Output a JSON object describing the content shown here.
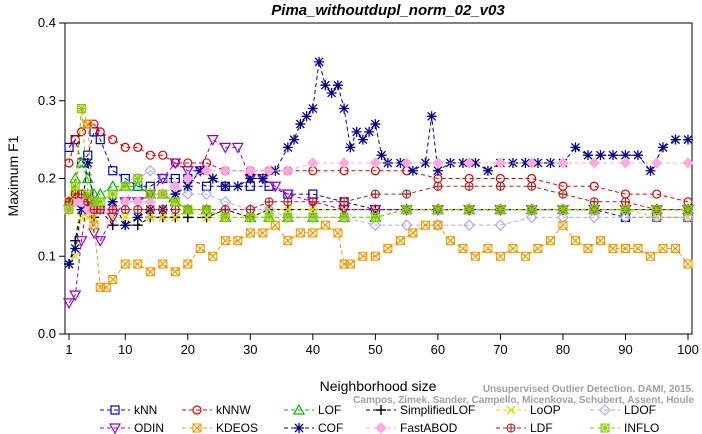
{
  "chart_data": {
    "type": "line",
    "title": "Pima_withoutdupl_norm_02_v03",
    "xlabel": "Neighborhood size",
    "ylabel": "Maximum F1",
    "xlim": [
      1,
      100
    ],
    "ylim": [
      0.0,
      0.4
    ],
    "xticks": [
      1,
      10,
      20,
      30,
      40,
      50,
      60,
      70,
      80,
      90,
      100
    ],
    "yticks": [
      "0.0",
      "0.1",
      "0.2",
      "0.3",
      "0.4"
    ],
    "grid": false,
    "legend_position": "bottom",
    "watermark": "Campos, Zimek, Sander, Campello, Micenkova, Schubert, Assent, Houle",
    "watermark_line1": "Unsupervised Outlier Detection. DAMI, 2015.",
    "series": [
      {
        "name": "kNN",
        "color": "#0000cc",
        "marker": "square",
        "x": [
          1,
          2,
          3,
          4,
          5,
          6,
          8,
          10,
          12,
          14,
          16,
          18,
          20,
          23,
          26,
          30,
          33,
          36,
          40,
          45,
          50,
          55,
          60,
          65,
          70,
          75,
          80,
          85,
          90,
          95,
          100
        ],
        "y": [
          0.24,
          0.25,
          0.22,
          0.23,
          0.26,
          0.25,
          0.21,
          0.2,
          0.19,
          0.19,
          0.2,
          0.2,
          0.2,
          0.19,
          0.19,
          0.19,
          0.19,
          0.18,
          0.18,
          0.17,
          0.16,
          0.16,
          0.16,
          0.16,
          0.16,
          0.16,
          0.16,
          0.16,
          0.15,
          0.15,
          0.15
        ]
      },
      {
        "name": "kNNW",
        "color": "#dd0000",
        "marker": "circle",
        "x": [
          1,
          2,
          3,
          4,
          5,
          6,
          8,
          10,
          12,
          14,
          16,
          18,
          20,
          23,
          26,
          30,
          33,
          36,
          40,
          45,
          50,
          55,
          60,
          65,
          70,
          75,
          80,
          85,
          90,
          95,
          100
        ],
        "y": [
          0.22,
          0.25,
          0.26,
          0.27,
          0.27,
          0.26,
          0.25,
          0.24,
          0.24,
          0.23,
          0.23,
          0.22,
          0.22,
          0.22,
          0.21,
          0.21,
          0.21,
          0.21,
          0.21,
          0.21,
          0.21,
          0.21,
          0.2,
          0.2,
          0.2,
          0.2,
          0.19,
          0.19,
          0.18,
          0.18,
          0.17
        ]
      },
      {
        "name": "LOF",
        "color": "#00bb00",
        "marker": "triangle-up",
        "x": [
          1,
          2,
          3,
          4,
          5,
          6,
          8,
          10,
          12,
          14,
          16,
          18,
          20,
          23,
          26,
          30,
          33,
          36,
          40,
          45,
          50,
          55,
          60,
          65,
          70,
          75,
          80,
          85,
          90,
          95,
          100
        ],
        "y": [
          0.17,
          0.2,
          0.22,
          0.2,
          0.18,
          0.18,
          0.19,
          0.19,
          0.19,
          0.18,
          0.18,
          0.17,
          0.16,
          0.16,
          0.15,
          0.15,
          0.15,
          0.15,
          0.15,
          0.15,
          0.15,
          0.16,
          0.16,
          0.16,
          0.16,
          0.16,
          0.16,
          0.16,
          0.16,
          0.16,
          0.16
        ]
      },
      {
        "name": "SimplifiedLOF",
        "color": "#000000",
        "marker": "plus",
        "x": [
          1,
          2,
          3,
          4,
          5,
          6,
          8,
          10,
          12,
          14,
          16,
          18,
          20,
          23,
          26,
          30,
          33,
          36,
          40,
          45,
          50,
          55,
          60,
          65,
          70,
          75,
          80,
          85,
          90,
          95,
          100
        ],
        "y": [
          0.09,
          0.12,
          0.17,
          0.17,
          0.15,
          0.16,
          0.14,
          0.14,
          0.14,
          0.15,
          0.15,
          0.15,
          0.15,
          0.15,
          0.16,
          0.15,
          0.16,
          0.16,
          0.16,
          0.16,
          0.16,
          0.16,
          0.16,
          0.16,
          0.16,
          0.16,
          0.16,
          0.16,
          0.16,
          0.16,
          0.16
        ]
      },
      {
        "name": "LoOP",
        "color": "#dddd00",
        "marker": "x",
        "x": [
          1,
          2,
          3,
          4,
          5,
          6,
          8,
          10,
          12,
          14,
          16,
          18,
          20,
          23,
          26,
          30,
          33,
          36,
          40,
          45,
          50,
          55,
          60,
          65,
          70,
          75,
          80,
          85,
          90,
          95,
          100
        ],
        "y": [
          0.09,
          0.1,
          0.15,
          0.15,
          0.15,
          0.16,
          0.15,
          0.15,
          0.15,
          0.15,
          0.15,
          0.15,
          0.16,
          0.15,
          0.15,
          0.15,
          0.16,
          0.16,
          0.16,
          0.16,
          0.16,
          0.16,
          0.16,
          0.16,
          0.16,
          0.16,
          0.16,
          0.16,
          0.16,
          0.15,
          0.15
        ]
      },
      {
        "name": "LDOF",
        "color": "#aaaaee",
        "marker": "diamond",
        "x": [
          1,
          2,
          3,
          4,
          5,
          6,
          8,
          10,
          12,
          14,
          16,
          18,
          20,
          23,
          26,
          30,
          33,
          36,
          40,
          45,
          50,
          55,
          60,
          65,
          70,
          75,
          80,
          85,
          90,
          95,
          100
        ],
        "y": [
          0.16,
          0.17,
          0.17,
          0.17,
          0.17,
          0.16,
          0.16,
          0.17,
          0.2,
          0.21,
          0.2,
          0.19,
          0.18,
          0.18,
          0.17,
          0.16,
          0.16,
          0.15,
          0.15,
          0.15,
          0.14,
          0.14,
          0.14,
          0.14,
          0.14,
          0.15,
          0.15,
          0.15,
          0.15,
          0.15,
          0.15
        ]
      },
      {
        "name": "ODIN",
        "color": "#9900cc",
        "marker": "triangle-down",
        "x": [
          1,
          2,
          3,
          4,
          5,
          6,
          8,
          10,
          12,
          14,
          16,
          18,
          20,
          22,
          24,
          26,
          28,
          30,
          32,
          34,
          36,
          40,
          45,
          50,
          55,
          60,
          65,
          70,
          75,
          80,
          85,
          90,
          95,
          100
        ],
        "y": [
          0.04,
          0.05,
          0.12,
          0.18,
          0.13,
          0.12,
          0.15,
          0.17,
          0.17,
          0.18,
          0.2,
          0.22,
          0.21,
          0.21,
          0.25,
          0.24,
          0.24,
          0.2,
          0.2,
          0.19,
          0.18,
          0.17,
          0.16,
          0.16,
          0.16,
          0.16,
          0.16,
          0.16,
          0.16,
          0.16,
          0.16,
          0.16,
          0.16,
          0.16
        ]
      },
      {
        "name": "KDEOS",
        "color": "#ee9900",
        "marker": "square-x",
        "x": [
          1,
          2,
          3,
          4,
          5,
          6,
          7,
          8,
          10,
          12,
          14,
          16,
          18,
          20,
          22,
          24,
          26,
          28,
          30,
          32,
          34,
          36,
          38,
          40,
          42,
          44,
          45,
          46,
          48,
          50,
          52,
          54,
          56,
          58,
          60,
          62,
          64,
          66,
          68,
          70,
          72,
          74,
          76,
          78,
          80,
          82,
          84,
          86,
          88,
          90,
          92,
          94,
          96,
          98,
          100
        ],
        "y": [
          0.17,
          0.18,
          0.29,
          0.27,
          0.14,
          0.06,
          0.06,
          0.07,
          0.09,
          0.09,
          0.08,
          0.09,
          0.08,
          0.09,
          0.11,
          0.1,
          0.12,
          0.12,
          0.13,
          0.13,
          0.14,
          0.12,
          0.13,
          0.13,
          0.14,
          0.13,
          0.09,
          0.09,
          0.1,
          0.1,
          0.11,
          0.12,
          0.13,
          0.14,
          0.14,
          0.12,
          0.11,
          0.1,
          0.11,
          0.1,
          0.11,
          0.1,
          0.11,
          0.12,
          0.14,
          0.12,
          0.11,
          0.12,
          0.11,
          0.11,
          0.11,
          0.1,
          0.11,
          0.11,
          0.09
        ]
      },
      {
        "name": "COF",
        "color": "#000088",
        "marker": "asterisk",
        "x": [
          1,
          2,
          3,
          4,
          5,
          6,
          8,
          10,
          12,
          14,
          16,
          18,
          20,
          22,
          24,
          26,
          28,
          30,
          32,
          34,
          36,
          37,
          38,
          39,
          40,
          41,
          42,
          43,
          44,
          45,
          46,
          47,
          48,
          49,
          50,
          51,
          52,
          54,
          56,
          58,
          59,
          60,
          62,
          64,
          66,
          68,
          70,
          72,
          74,
          76,
          78,
          80,
          82,
          84,
          86,
          88,
          90,
          92,
          94,
          96,
          98,
          100
        ],
        "y": [
          0.09,
          0.11,
          0.16,
          0.22,
          0.17,
          0.16,
          0.17,
          0.14,
          0.15,
          0.16,
          0.16,
          0.18,
          0.19,
          0.21,
          0.2,
          0.19,
          0.19,
          0.2,
          0.2,
          0.21,
          0.24,
          0.25,
          0.27,
          0.28,
          0.29,
          0.35,
          0.32,
          0.31,
          0.32,
          0.29,
          0.24,
          0.26,
          0.25,
          0.26,
          0.27,
          0.23,
          0.22,
          0.22,
          0.21,
          0.22,
          0.28,
          0.21,
          0.22,
          0.22,
          0.22,
          0.21,
          0.22,
          0.22,
          0.22,
          0.22,
          0.22,
          0.22,
          0.24,
          0.23,
          0.23,
          0.23,
          0.23,
          0.23,
          0.21,
          0.24,
          0.25,
          0.25
        ]
      },
      {
        "name": "FastABOD",
        "color": "#ffaadd",
        "marker": "diamond-filled",
        "x": [
          1,
          2,
          3,
          4,
          5,
          6,
          8,
          10,
          12,
          14,
          16,
          18,
          20,
          23,
          26,
          30,
          33,
          36,
          40,
          45,
          50,
          55,
          60,
          65,
          70,
          75,
          80,
          85,
          90,
          95,
          100
        ],
        "y": [
          0.16,
          0.17,
          0.17,
          0.16,
          0.16,
          0.16,
          0.16,
          0.17,
          0.17,
          0.17,
          0.18,
          0.19,
          0.2,
          0.21,
          0.21,
          0.21,
          0.21,
          0.21,
          0.22,
          0.22,
          0.22,
          0.22,
          0.22,
          0.22,
          0.22,
          0.22,
          0.22,
          0.22,
          0.22,
          0.22,
          0.22
        ]
      },
      {
        "name": "LDF",
        "color": "#aa2222",
        "marker": "circle-plus",
        "x": [
          1,
          2,
          3,
          4,
          5,
          6,
          8,
          10,
          12,
          14,
          16,
          18,
          20,
          23,
          26,
          30,
          33,
          36,
          40,
          45,
          50,
          55,
          60,
          65,
          70,
          75,
          80,
          85,
          90,
          95,
          100
        ],
        "y": [
          0.17,
          0.18,
          0.18,
          0.17,
          0.16,
          0.16,
          0.16,
          0.16,
          0.16,
          0.16,
          0.16,
          0.16,
          0.16,
          0.16,
          0.16,
          0.16,
          0.17,
          0.17,
          0.17,
          0.17,
          0.18,
          0.18,
          0.19,
          0.19,
          0.19,
          0.19,
          0.18,
          0.17,
          0.17,
          0.16,
          0.16
        ]
      },
      {
        "name": "INFLO",
        "color": "#88cc00",
        "marker": "star-box",
        "x": [
          1,
          2,
          3,
          4,
          5,
          6,
          8,
          10,
          12,
          14,
          16,
          18,
          20,
          23,
          26,
          30,
          33,
          36,
          40,
          45,
          50,
          55,
          60,
          65,
          70,
          75,
          80,
          85,
          90,
          95,
          100
        ],
        "y": [
          0.16,
          0.19,
          0.29,
          0.18,
          0.17,
          0.17,
          0.18,
          0.19,
          0.2,
          0.18,
          0.18,
          0.17,
          0.16,
          0.16,
          0.15,
          0.15,
          0.15,
          0.15,
          0.15,
          0.15,
          0.15,
          0.16,
          0.16,
          0.16,
          0.16,
          0.16,
          0.16,
          0.16,
          0.16,
          0.16,
          0.16
        ]
      }
    ]
  }
}
